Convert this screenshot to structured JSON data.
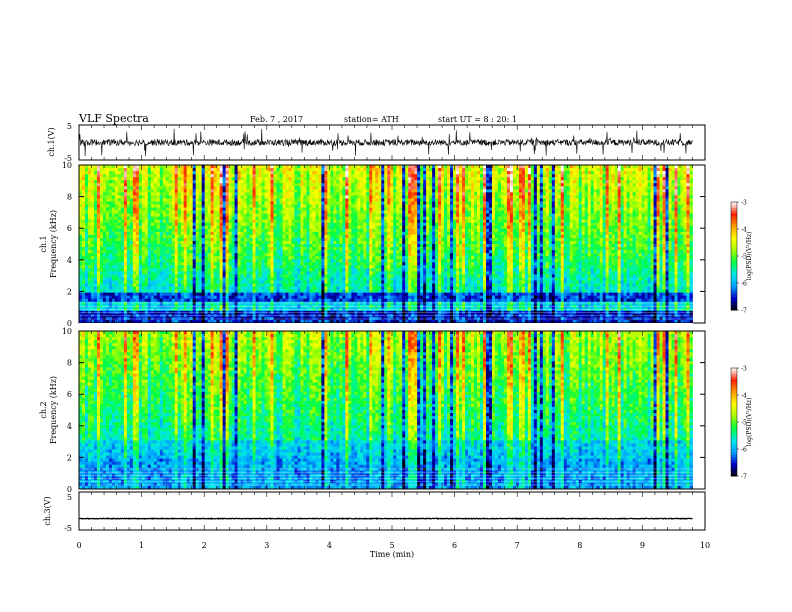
{
  "header": {
    "title": "VLF  Spectra",
    "date": "Feb. 7  , 2017",
    "station": "station= ATH",
    "start": "start  UT  =   8  : 20: 1"
  },
  "chart_data": [
    {
      "type": "line",
      "panel": "ch1-waveform",
      "ylabel": "ch.1(V)",
      "ylim": [
        -5,
        5
      ],
      "ytick_labels": [
        "5",
        "-5"
      ],
      "x_range": [
        0,
        9.8
      ],
      "baseline": 0,
      "approx_peak_amplitude": 3
    },
    {
      "type": "heatmap",
      "panel": "ch1-spectrogram",
      "ylabel_channel": "ch.1",
      "ylabel": "Frequency  (kHz)",
      "ylim": [
        0,
        10
      ],
      "ytick_labels": [
        "0",
        "2",
        "4",
        "6",
        "8",
        "10"
      ],
      "colorbar": {
        "label": "log(PSD)(V²/Hz)",
        "range": [
          -7,
          -3
        ],
        "tick_labels": [
          "-3",
          "-4",
          "-5",
          "-6",
          "-7"
        ],
        "colors": [
          "#000000",
          "#0000c8",
          "#00a0ff",
          "#00e8e8",
          "#00ff40",
          "#a0ff00",
          "#ffff00",
          "#ffa000",
          "#ff2000",
          "#ffffff"
        ]
      }
    },
    {
      "type": "heatmap",
      "panel": "ch2-spectrogram",
      "ylabel_channel": "ch.2",
      "ylabel": "Frequency  (kHz)",
      "ylim": [
        0,
        10
      ],
      "ytick_labels": [
        "0",
        "2",
        "4",
        "6",
        "8",
        "10"
      ],
      "colorbar": {
        "label": "log(PSD)(V²/Hz)",
        "range": [
          -7,
          -3
        ],
        "tick_labels": [
          "-3",
          "-4",
          "-5",
          "-6",
          "-7"
        ],
        "colors": [
          "#000000",
          "#0000c8",
          "#00a0ff",
          "#00e8e8",
          "#00ff40",
          "#a0ff00",
          "#ffff00",
          "#ffa000",
          "#ff2000",
          "#ffffff"
        ]
      }
    },
    {
      "type": "line",
      "panel": "ch3-waveform",
      "ylabel": "ch.3(V)",
      "ylim": [
        -5,
        5
      ],
      "ytick_labels": [
        "5",
        "-5"
      ],
      "x_range": [
        0,
        9.8
      ],
      "baseline": -2,
      "approx_peak_amplitude": 0.3
    }
  ],
  "xaxis": {
    "label": "Time  (min)",
    "range": [
      0,
      10
    ],
    "tick_labels": [
      "0",
      "1",
      "2",
      "3",
      "4",
      "5",
      "6",
      "7",
      "8",
      "9",
      "10"
    ]
  }
}
